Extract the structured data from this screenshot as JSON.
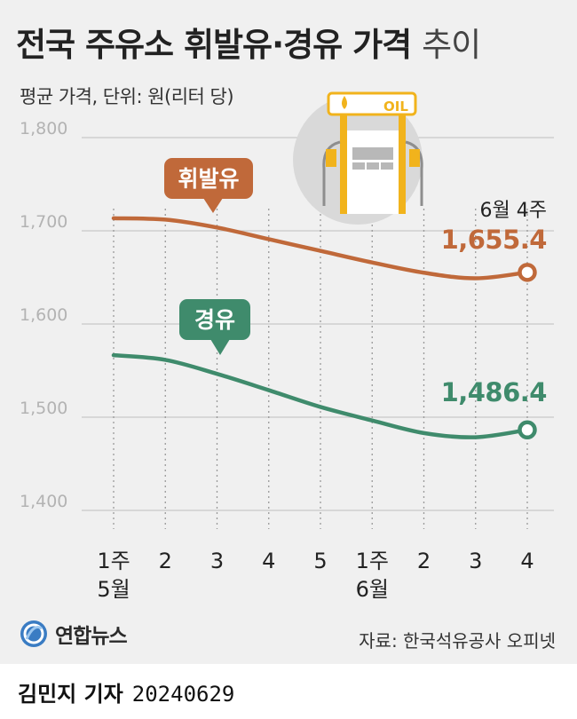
{
  "title": {
    "main": "전국 주유소 휘발유·경유 가격",
    "suffix": "추이"
  },
  "subtitle": "평균 가격, 단위: 원(리터 당)",
  "source": "자료: 한국석유공사 오피넷",
  "brand": "연합뉴스",
  "byline": {
    "name": "김민지 기자",
    "date": "20240629"
  },
  "colors": {
    "gasoline": "#c0693a",
    "diesel": "#3f8b6c",
    "grid": "#c8c8c8",
    "background": "#f0f0f0"
  },
  "icon": {
    "name": "gas-pump-icon",
    "label": "OIL"
  },
  "chart_data": {
    "type": "line",
    "categories": [
      "1주",
      "2",
      "3",
      "4",
      "5",
      "1주",
      "2",
      "3",
      "4"
    ],
    "month_labels": [
      {
        "index": 0,
        "label": "5월"
      },
      {
        "index": 5,
        "label": "6월"
      }
    ],
    "y_ticks": [
      "1,800",
      "1,700",
      "1,600",
      "1,500",
      "1,400"
    ],
    "ylim": [
      1400,
      1800
    ],
    "grid": true,
    "series": [
      {
        "name": "휘발유",
        "color": "#c0693a",
        "values": [
          1713.5,
          1712.0,
          1703.5,
          1691.0,
          1678.5,
          1666.0,
          1655.0,
          1649.0,
          1655.4
        ],
        "end_label": "1,655.4",
        "end_note": "6월 4주"
      },
      {
        "name": "경유",
        "color": "#3f8b6c",
        "values": [
          1566.5,
          1561.5,
          1546.5,
          1529.0,
          1511.0,
          1496.5,
          1483.0,
          1478.5,
          1486.4
        ],
        "end_label": "1,486.4"
      }
    ]
  }
}
